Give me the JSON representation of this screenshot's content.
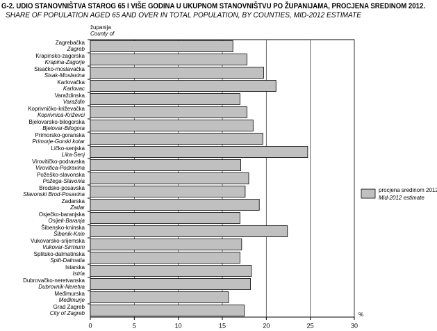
{
  "chart_data": {
    "type": "bar",
    "orientation": "horizontal",
    "title": "G-2. UDIO STANOVNIŠTVA STAROG 65 I VIŠE GODINA U UKUPNOM STANOVNIŠTVU PO ŽUPANIJAMA, PROCJENA SREDINOM 2012.",
    "subtitle": "SHARE OF POPULATION AGED 65 AND OVER IN TOTAL POPULATION, BY COUNTIES, MID-2012 ESTIMATE",
    "y_label": "županija",
    "y_label_en": "County of",
    "x_label": "%",
    "categories": [
      "Zagrebačka",
      "Krapinsko-zagorska",
      "Sisačko-moslavačka",
      "Karlovačka",
      "Varaždinska",
      "Koprivničko-križevačka",
      "Bjelovarsko-bilogorska",
      "Primorsko-goranska",
      "Ličko-senjska",
      "Virovitičko-podravska",
      "Požeško-slavonska",
      "Brodsko-posavska",
      "Zadarska",
      "Osječko-baranjska",
      "Šibensko-kninska",
      "Vukovarsko-srijemska",
      "Splitsko-dalmatinska",
      "Istarska",
      "Dubrovačko-neretvanska",
      "Međimurska",
      "Grad Zagreb"
    ],
    "categories_en": [
      "Zagreb",
      "Krapina-Zagorje",
      "Sisak-Moslavina",
      "Karlovac",
      "Varaždin",
      "Koprivnica-Križevci",
      "Bjelovar-Bilogora",
      "Primorje-Gorski kotar",
      "Lika-Senj",
      "Virovitica-Podravina",
      "Požega-Slavonia",
      "Slavonski Brod-Posavina",
      "Zadar",
      "Osijek-Baranja",
      "Šibenik-Knin",
      "Vukovar-Sirmium",
      "Split-Dalmatia",
      "Istria",
      "Dubrovnik-Neretva",
      "Međimurje",
      "City of Zagreb"
    ],
    "series": [
      {
        "name": "procjena sredinom 2012.",
        "name_en": "Mid-2012 estimate",
        "color": "#c0c0c0",
        "values": [
          16.2,
          17.8,
          19.7,
          21.1,
          17.0,
          17.8,
          18.5,
          19.6,
          24.7,
          17.1,
          18.0,
          17.6,
          19.2,
          17.0,
          22.4,
          17.2,
          17.0,
          18.3,
          18.2,
          15.7,
          17.5
        ]
      }
    ],
    "xlim": [
      0,
      30
    ],
    "xticks": [
      0,
      5,
      10,
      15,
      20,
      25,
      30
    ],
    "grid": true
  }
}
